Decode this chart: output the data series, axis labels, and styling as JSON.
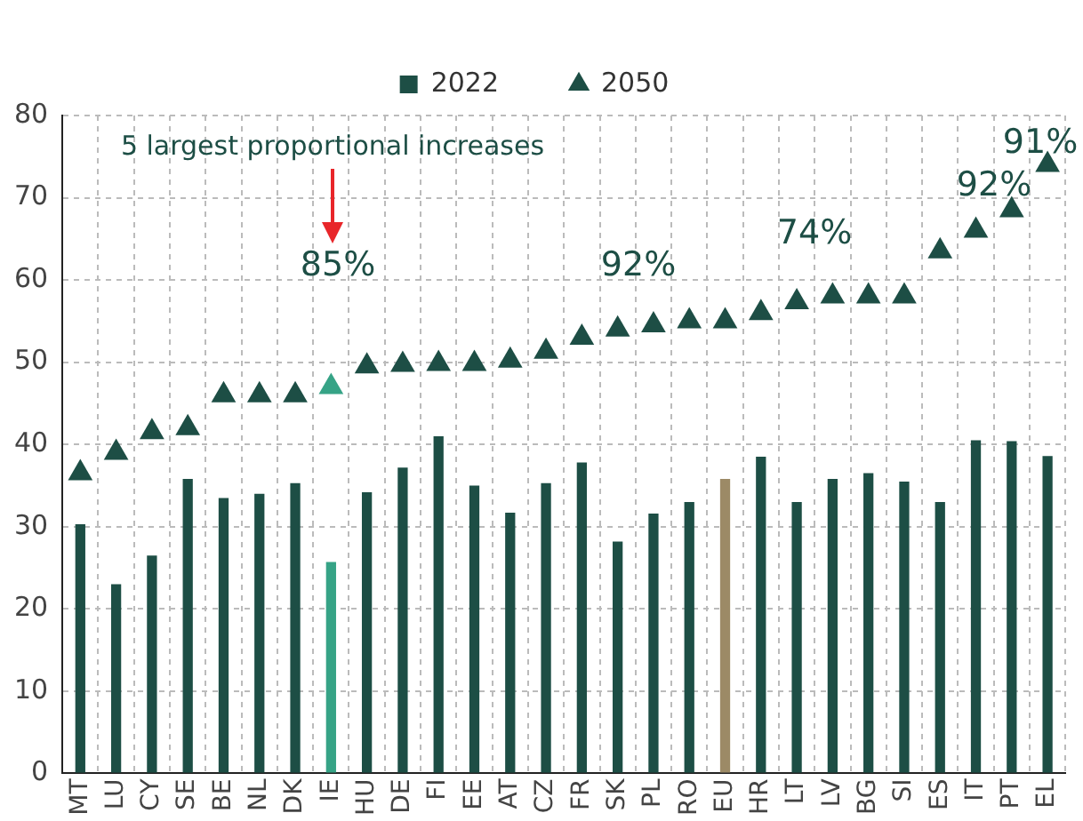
{
  "chart_data": {
    "type": "bar",
    "categories": [
      "MT",
      "LU",
      "CY",
      "SE",
      "BE",
      "NL",
      "DK",
      "IE",
      "HU",
      "DE",
      "FI",
      "EE",
      "AT",
      "CZ",
      "FR",
      "SK",
      "PL",
      "RO",
      "EU",
      "HR",
      "LT",
      "LV",
      "BG",
      "SI",
      "ES",
      "IT",
      "PT",
      "EL"
    ],
    "series": [
      {
        "name": "2022",
        "color": "#1d4e45",
        "colors": [
          "#1d4e45",
          "#1d4e45",
          "#1d4e45",
          "#1d4e45",
          "#1d4e45",
          "#1d4e45",
          "#1d4e45",
          "#36a386",
          "#1d4e45",
          "#1d4e45",
          "#1d4e45",
          "#1d4e45",
          "#1d4e45",
          "#1d4e45",
          "#1d4e45",
          "#1d4e45",
          "#1d4e45",
          "#1d4e45",
          "#9c8a66",
          "#1d4e45",
          "#1d4e45",
          "#1d4e45",
          "#1d4e45",
          "#1d4e45",
          "#1d4e45",
          "#1d4e45",
          "#1d4e45",
          "#1d4e45"
        ],
        "values": [
          30.3,
          23,
          26.5,
          35.8,
          33.5,
          34,
          35.3,
          25.7,
          34.2,
          37.2,
          41,
          35,
          31.7,
          35.3,
          37.8,
          28.2,
          31.6,
          33,
          35.8,
          38.5,
          33,
          35.8,
          36.5,
          35.5,
          33,
          40.5,
          40.4,
          38.6
        ]
      },
      {
        "name": "2050",
        "type": "scatter",
        "marker": "triangle",
        "color": "#1d4e45",
        "colors": [
          "#1d4e45",
          "#1d4e45",
          "#1d4e45",
          "#1d4e45",
          "#1d4e45",
          "#1d4e45",
          "#1d4e45",
          "#36a386",
          "#1d4e45",
          "#1d4e45",
          "#1d4e45",
          "#1d4e45",
          "#1d4e45",
          "#1d4e45",
          "#1d4e45",
          "#1d4e45",
          "#1d4e45",
          "#1d4e45",
          "#1d4e45",
          "#1d4e45",
          "#1d4e45",
          "#1d4e45",
          "#1d4e45",
          "#1d4e45",
          "#1d4e45",
          "#1d4e45",
          "#1d4e45",
          "#1d4e45"
        ],
        "values": [
          36.5,
          39,
          41.5,
          42,
          46,
          46,
          46,
          47,
          49.5,
          49.7,
          49.8,
          49.8,
          50.2,
          51.3,
          53,
          54,
          54.5,
          55,
          55,
          56,
          57.3,
          58,
          58,
          58,
          63.5,
          66,
          68.5,
          74
        ]
      }
    ],
    "ylim": [
      0,
      80
    ],
    "yticks": [
      0,
      10,
      20,
      30,
      40,
      50,
      60,
      70,
      80
    ],
    "grid": true,
    "legend": "top",
    "annotations": [
      "5 largest proportional increases",
      "85%",
      "92%",
      "74%",
      "92%",
      "91%"
    ]
  }
}
